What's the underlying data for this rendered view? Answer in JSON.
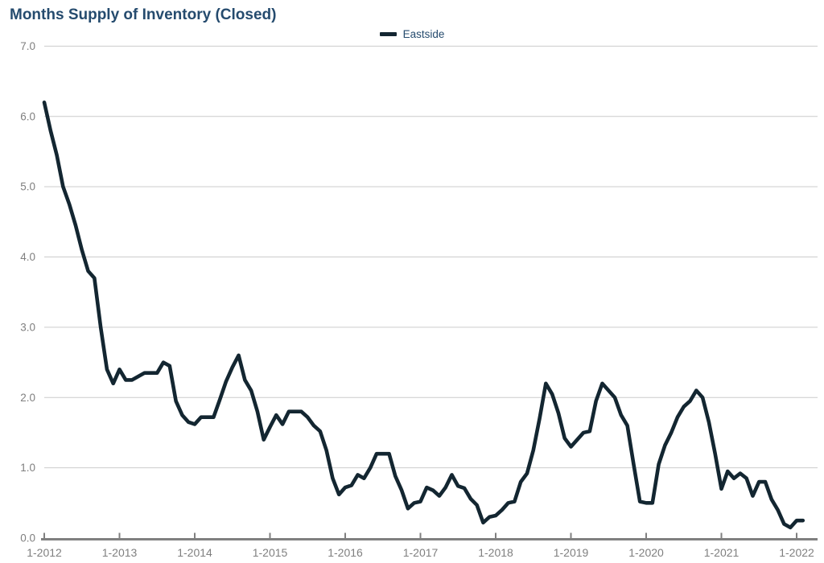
{
  "chart_data": {
    "type": "line",
    "title": "Months Supply of Inventory (Closed)",
    "legend": {
      "position": "top-center",
      "entries": [
        "Eastside"
      ]
    },
    "grid": "horizontal-only",
    "colors": {
      "title": "#254b6e",
      "legend_text": "#254b6e",
      "line": "#132631",
      "axis_text": "#7f7f7f",
      "axis_line": "#808080",
      "gridline": "#cccccc"
    },
    "x_axis": {
      "tick_labels": [
        "1-2012",
        "1-2013",
        "1-2014",
        "1-2015",
        "1-2016",
        "1-2017",
        "1-2018",
        "1-2019",
        "1-2020",
        "1-2021",
        "1-2022"
      ],
      "unit": "month-year, monthly data points"
    },
    "y_axis": {
      "ticks": [
        {
          "v": 7,
          "label": "7.0"
        },
        {
          "v": 6,
          "label": "6.0"
        },
        {
          "v": 5,
          "label": "5.0"
        },
        {
          "v": 4,
          "label": "4.0"
        },
        {
          "v": 3,
          "label": "3.0"
        },
        {
          "v": 2,
          "label": "2.0"
        },
        {
          "v": 1,
          "label": "1.0"
        },
        {
          "v": 0,
          "label": "0.0"
        }
      ],
      "ylim": [
        0,
        7
      ]
    },
    "series": [
      {
        "name": "Eastside",
        "start": "1-2012",
        "end": "2-2022",
        "frequency": "monthly",
        "values": [
          6.2,
          5.8,
          5.45,
          5.0,
          4.75,
          4.45,
          4.1,
          3.8,
          3.7,
          3.0,
          2.4,
          2.2,
          2.4,
          2.25,
          2.25,
          2.3,
          2.35,
          2.35,
          2.35,
          2.5,
          2.45,
          1.95,
          1.75,
          1.65,
          1.62,
          1.72,
          1.72,
          1.72,
          1.97,
          2.23,
          2.43,
          2.6,
          2.25,
          2.1,
          1.8,
          1.4,
          1.58,
          1.75,
          1.62,
          1.8,
          1.8,
          1.8,
          1.72,
          1.6,
          1.52,
          1.25,
          0.85,
          0.62,
          0.72,
          0.75,
          0.9,
          0.85,
          1.0,
          1.2,
          1.2,
          1.2,
          0.88,
          0.68,
          0.42,
          0.5,
          0.52,
          0.72,
          0.68,
          0.6,
          0.72,
          0.9,
          0.74,
          0.71,
          0.56,
          0.47,
          0.22,
          0.3,
          0.32,
          0.4,
          0.5,
          0.52,
          0.8,
          0.92,
          1.25,
          1.7,
          2.2,
          2.05,
          1.78,
          1.42,
          1.3,
          1.4,
          1.5,
          1.52,
          1.95,
          2.2,
          2.1,
          2.0,
          1.75,
          1.6,
          1.05,
          0.52,
          0.5,
          0.5,
          1.05,
          1.32,
          1.5,
          1.72,
          1.87,
          1.95,
          2.1,
          2.0,
          1.65,
          1.2,
          0.7,
          0.95,
          0.85,
          0.92,
          0.85,
          0.6,
          0.8,
          0.8,
          0.55,
          0.4,
          0.2,
          0.15,
          0.25,
          0.25
        ]
      }
    ]
  }
}
